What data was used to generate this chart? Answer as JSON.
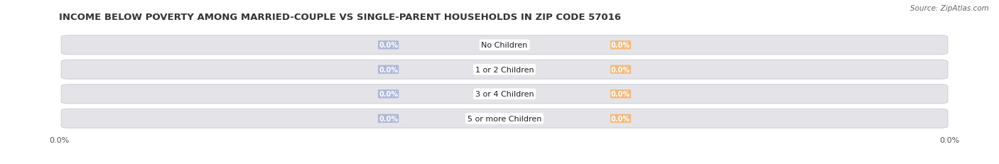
{
  "title": "INCOME BELOW POVERTY AMONG MARRIED-COUPLE VS SINGLE-PARENT HOUSEHOLDS IN ZIP CODE 57016",
  "source": "Source: ZipAtlas.com",
  "categories": [
    "No Children",
    "1 or 2 Children",
    "3 or 4 Children",
    "5 or more Children"
  ],
  "married_values": [
    0.0,
    0.0,
    0.0,
    0.0
  ],
  "single_values": [
    0.0,
    0.0,
    0.0,
    0.0
  ],
  "married_color": "#b0b8d8",
  "single_color": "#f2bb80",
  "bar_bg_color": "#e4e4e8",
  "bar_border_color": "#d0d0d8",
  "title_fontsize": 9.5,
  "source_fontsize": 7.5,
  "axis_label_fontsize": 8,
  "legend_fontsize": 8,
  "category_fontsize": 8,
  "value_fontsize": 7,
  "background_color": "#ffffff",
  "axis_tick_label": "0.0%"
}
